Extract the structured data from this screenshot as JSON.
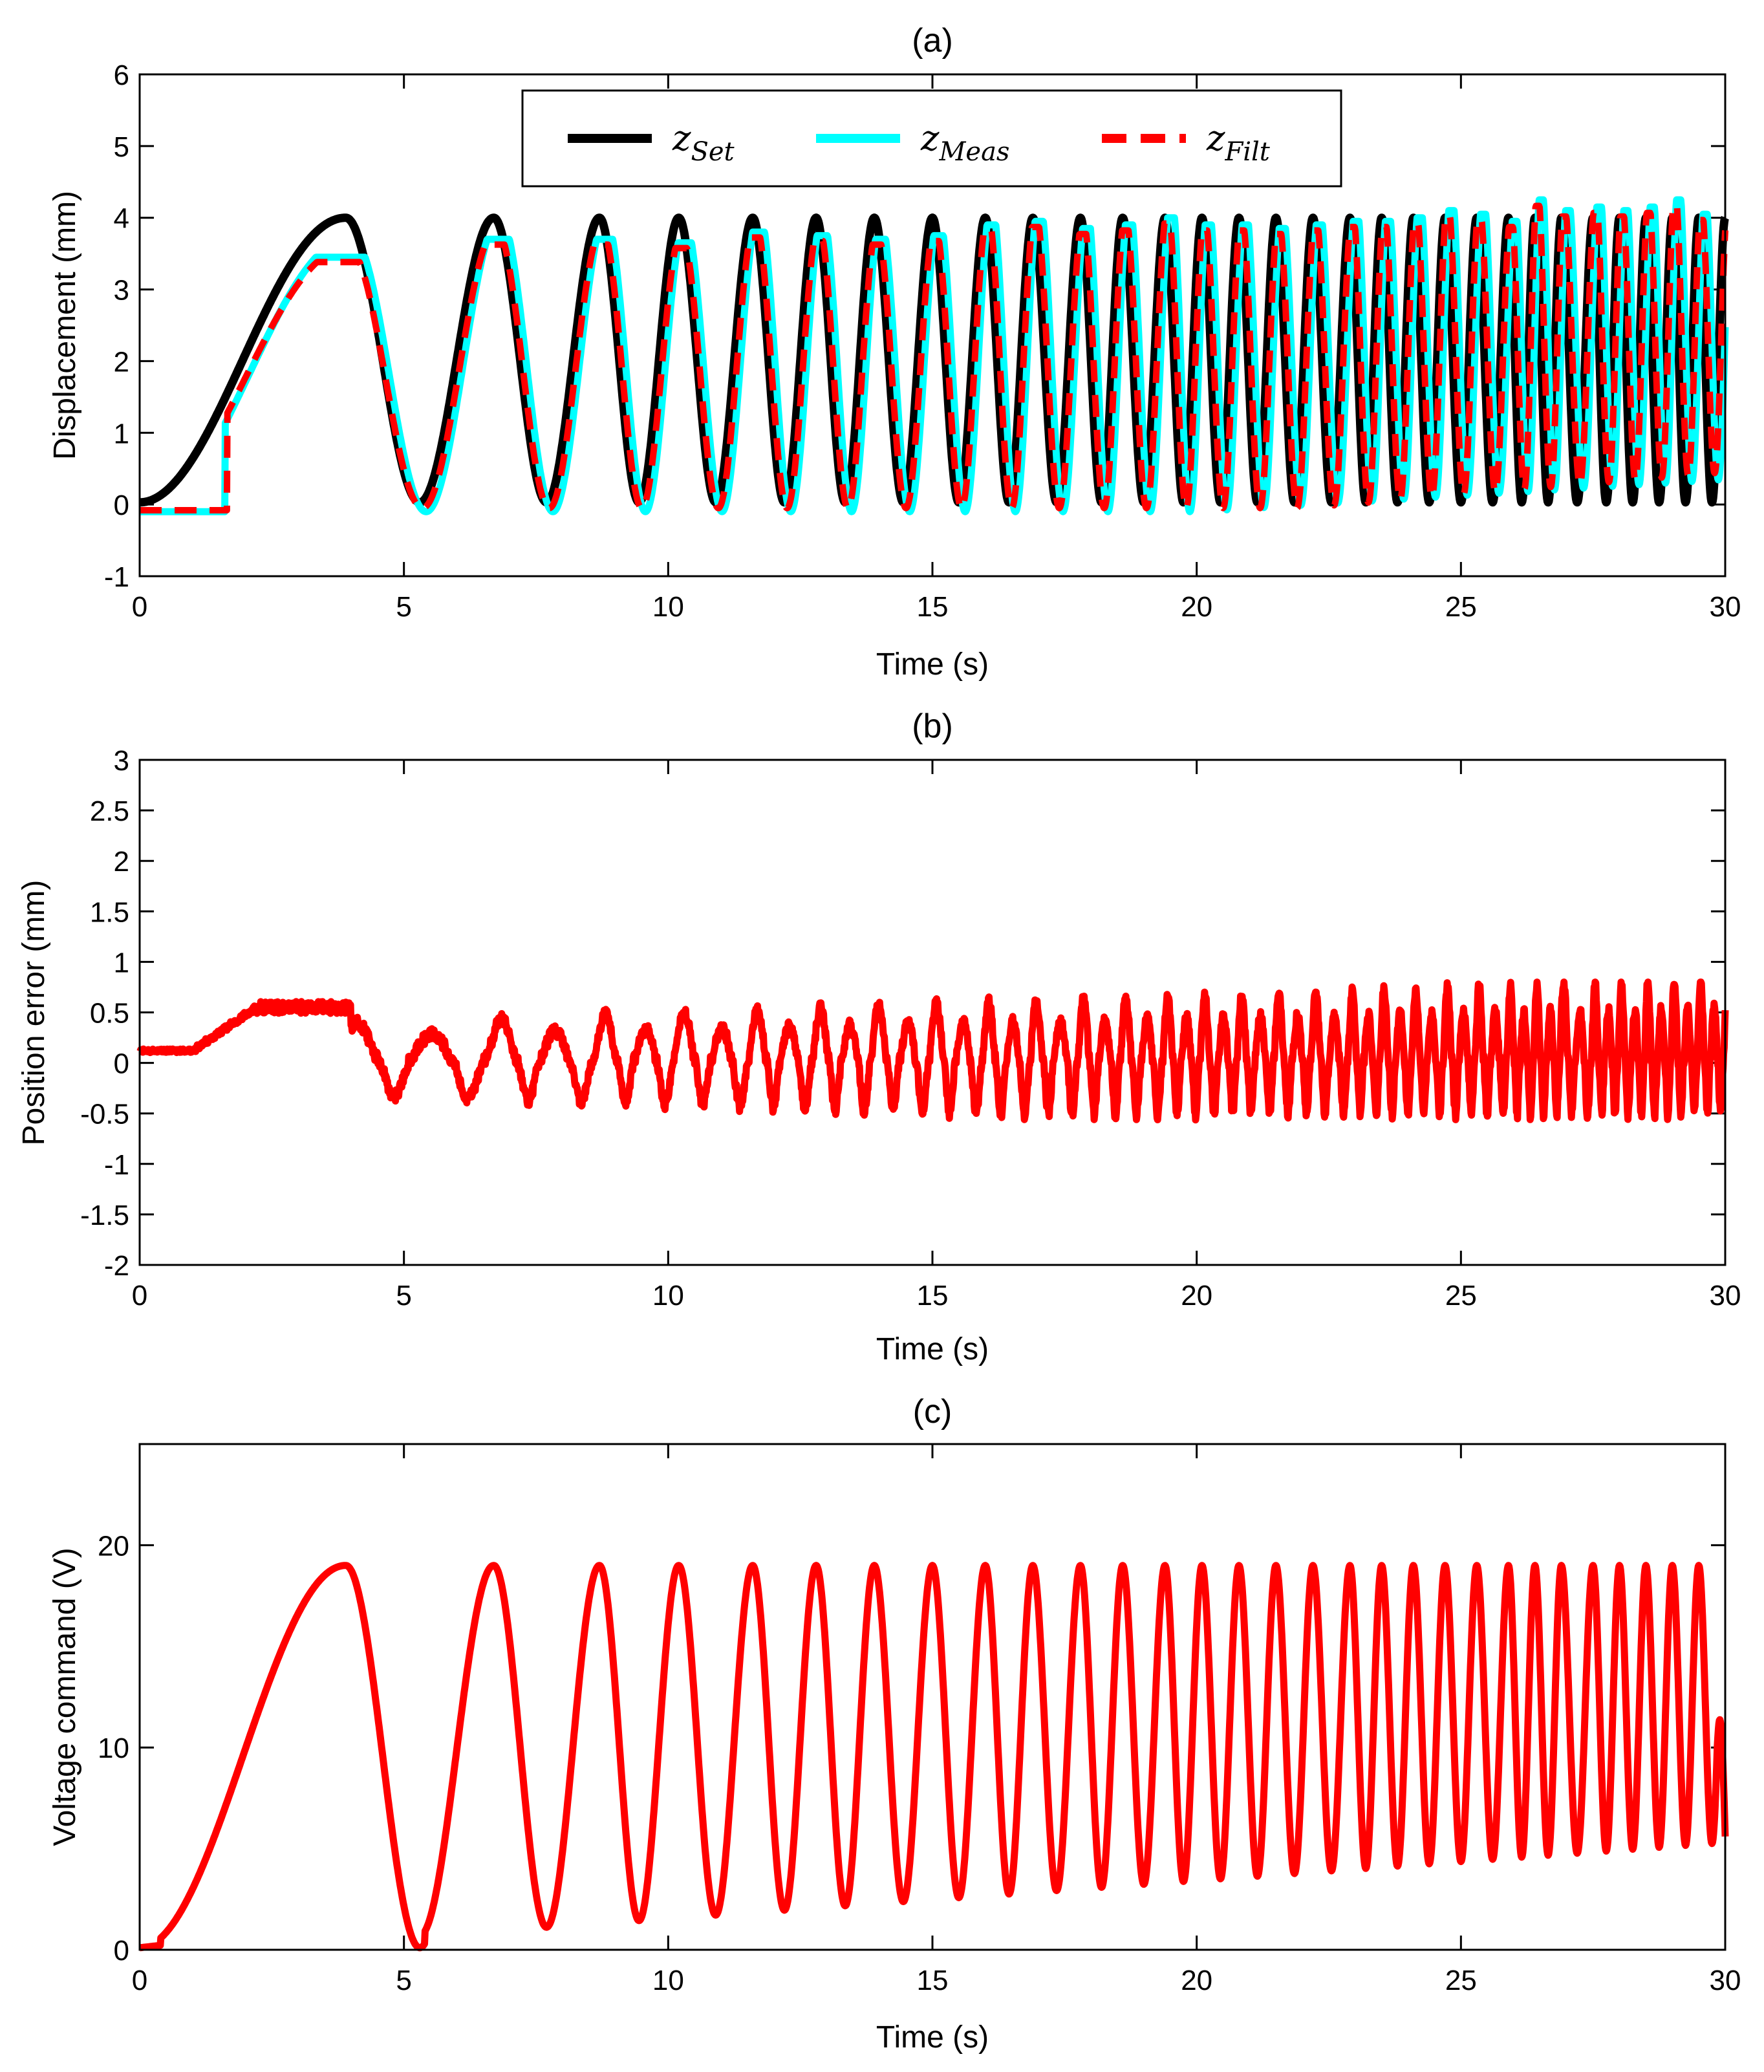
{
  "chart_data": [
    {
      "id": "a",
      "type": "line",
      "title": "(a)",
      "xlabel": "Time (s)",
      "ylabel": "Displacement (mm)",
      "xlim": [
        0,
        30
      ],
      "ylim": [
        -1,
        6
      ],
      "xticks": [
        0,
        5,
        10,
        15,
        20,
        25,
        30
      ],
      "yticks": [
        -1,
        0,
        1,
        2,
        3,
        4,
        5,
        6
      ],
      "legend_position": "top-center",
      "signal": {
        "description": "chirp sine 0 to 4 mm, frequency rising over time",
        "peak_times_s": [
          3.9,
          6.7,
          8.7,
          10.2,
          11.6,
          12.8,
          13.9,
          15.0,
          16.0,
          16.9,
          17.8,
          18.6,
          19.4,
          20.1,
          20.8,
          21.5,
          22.2,
          22.9,
          23.5,
          24.1,
          24.7,
          25.3,
          25.9,
          26.4,
          26.9,
          27.5,
          28.0,
          28.5,
          29.0,
          29.5
        ],
        "set_amplitude_mm": 4.0,
        "meas_peak_mm": [
          3.45,
          3.7,
          3.7,
          3.65,
          3.8,
          3.75,
          3.7,
          3.75,
          3.9,
          3.95,
          3.85,
          3.9,
          4.0,
          3.9,
          3.9,
          3.85,
          3.9,
          3.95,
          3.95,
          4.0,
          4.1,
          4.05,
          3.95,
          4.25,
          4.1,
          4.15,
          4.1,
          4.15,
          4.25,
          4.05
        ],
        "meas_trough_end_mm": 0.4
      },
      "series": [
        {
          "name": "z_Set",
          "main": "z",
          "sub": "Set",
          "color": "#000000",
          "style": "solid"
        },
        {
          "name": "z_Meas",
          "main": "z",
          "sub": "Meas",
          "color": "#00ffff",
          "style": "solid"
        },
        {
          "name": "z_Filt",
          "main": "z",
          "sub": "Filt",
          "color": "#ff0000",
          "style": "dashed"
        }
      ]
    },
    {
      "id": "b",
      "type": "line",
      "title": "(b)",
      "xlabel": "Time (s)",
      "ylabel": "Position error (mm)",
      "xlim": [
        0,
        30
      ],
      "ylim": [
        -2,
        3
      ],
      "xticks": [
        0,
        5,
        10,
        15,
        20,
        25,
        30
      ],
      "yticks": [
        -2,
        -1.5,
        -1,
        -0.5,
        0,
        0.5,
        1,
        1.5,
        2,
        2.5,
        3
      ],
      "signal": {
        "start_level_mm": 0.12,
        "plateau_level_mm": 0.55,
        "plateau_range_s": [
          2.2,
          4.0
        ],
        "min_error_mm": -0.62,
        "max_error_mm": 0.8
      },
      "series": [
        {
          "name": "error",
          "color": "#ff0000"
        }
      ]
    },
    {
      "id": "c",
      "type": "line",
      "title": "(c)",
      "xlabel": "Time (s)",
      "ylabel": "Voltage command (V)",
      "xlim": [
        0,
        30
      ],
      "ylim": [
        0,
        25
      ],
      "xticks": [
        0,
        5,
        10,
        15,
        20,
        25,
        30
      ],
      "yticks": [
        0,
        10,
        20
      ],
      "signal": {
        "peak_V": 19.0,
        "trough_start_V": 0.7,
        "trough_end_V": 5.3,
        "final_V": 5.6
      },
      "series": [
        {
          "name": "voltage",
          "color": "#ff0000"
        }
      ]
    }
  ]
}
